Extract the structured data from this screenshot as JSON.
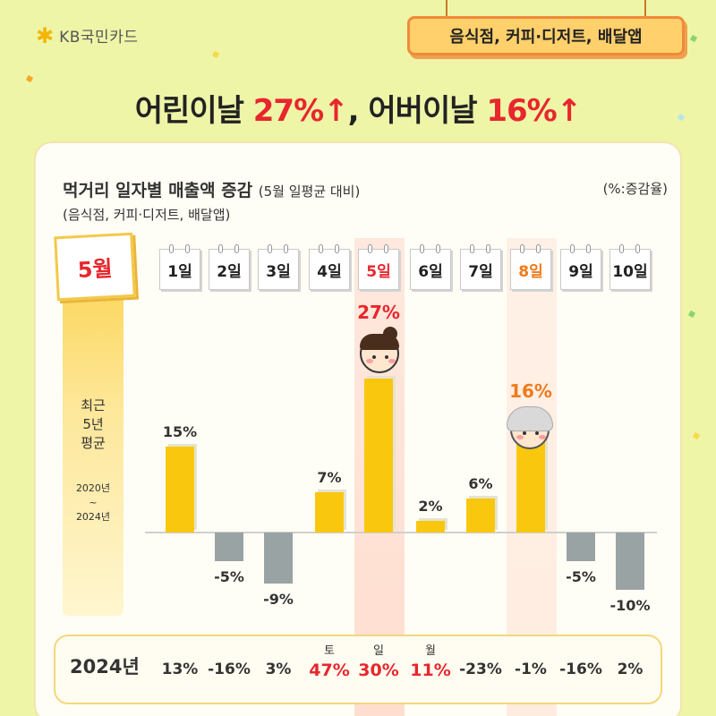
{
  "brand": {
    "logo_text": "KB국민카드"
  },
  "category_tag": "음식점, 커피·디저트, 배달앱",
  "headline": {
    "part1": "어린이날 ",
    "value1": "27%↑",
    "sep": ", 어버이날 ",
    "value2": "16%↑"
  },
  "month_badge": "5월",
  "side_note": {
    "line1": "최근",
    "line2": "5년",
    "line3": "평균",
    "years_from": "2020년",
    "tilde": "~",
    "years_to": "2024년"
  },
  "colors": {
    "positive_bar": "#f9c80e",
    "negative_bar": "#9aa3a3",
    "highlight_red": "#e8262d",
    "highlight_orange": "#f07a1a"
  },
  "chart_data": {
    "type": "bar",
    "title": "먹거리 일자별 매출액 증감",
    "title_note": "(5월 일평균 대비)",
    "subtitle": "(음식점, 커피·디저트, 배달앱)",
    "unit_label": "(%:증감율)",
    "categories": [
      "1일",
      "2일",
      "3일",
      "4일",
      "5일",
      "6일",
      "7일",
      "8일",
      "9일",
      "10일"
    ],
    "series": [
      {
        "name": "최근 5년 평균",
        "values": [
          15,
          -5,
          -9,
          7,
          27,
          2,
          6,
          16,
          -5,
          -10
        ]
      }
    ],
    "value_labels": [
      "15%",
      "-5%",
      "-9%",
      "7%",
      "27%",
      "2%",
      "6%",
      "16%",
      "-5%",
      "-10%"
    ],
    "highlight_days": [
      "5일",
      "8일"
    ],
    "row_2024": {
      "label": "2024년",
      "weekdays": [
        "",
        "",
        "",
        "토",
        "일",
        "월",
        "",
        "",
        "",
        ""
      ],
      "values": [
        "13%",
        "-16%",
        "3%",
        "47%",
        "30%",
        "11%",
        "-23%",
        "-1%",
        "-16%",
        "2%"
      ]
    }
  }
}
